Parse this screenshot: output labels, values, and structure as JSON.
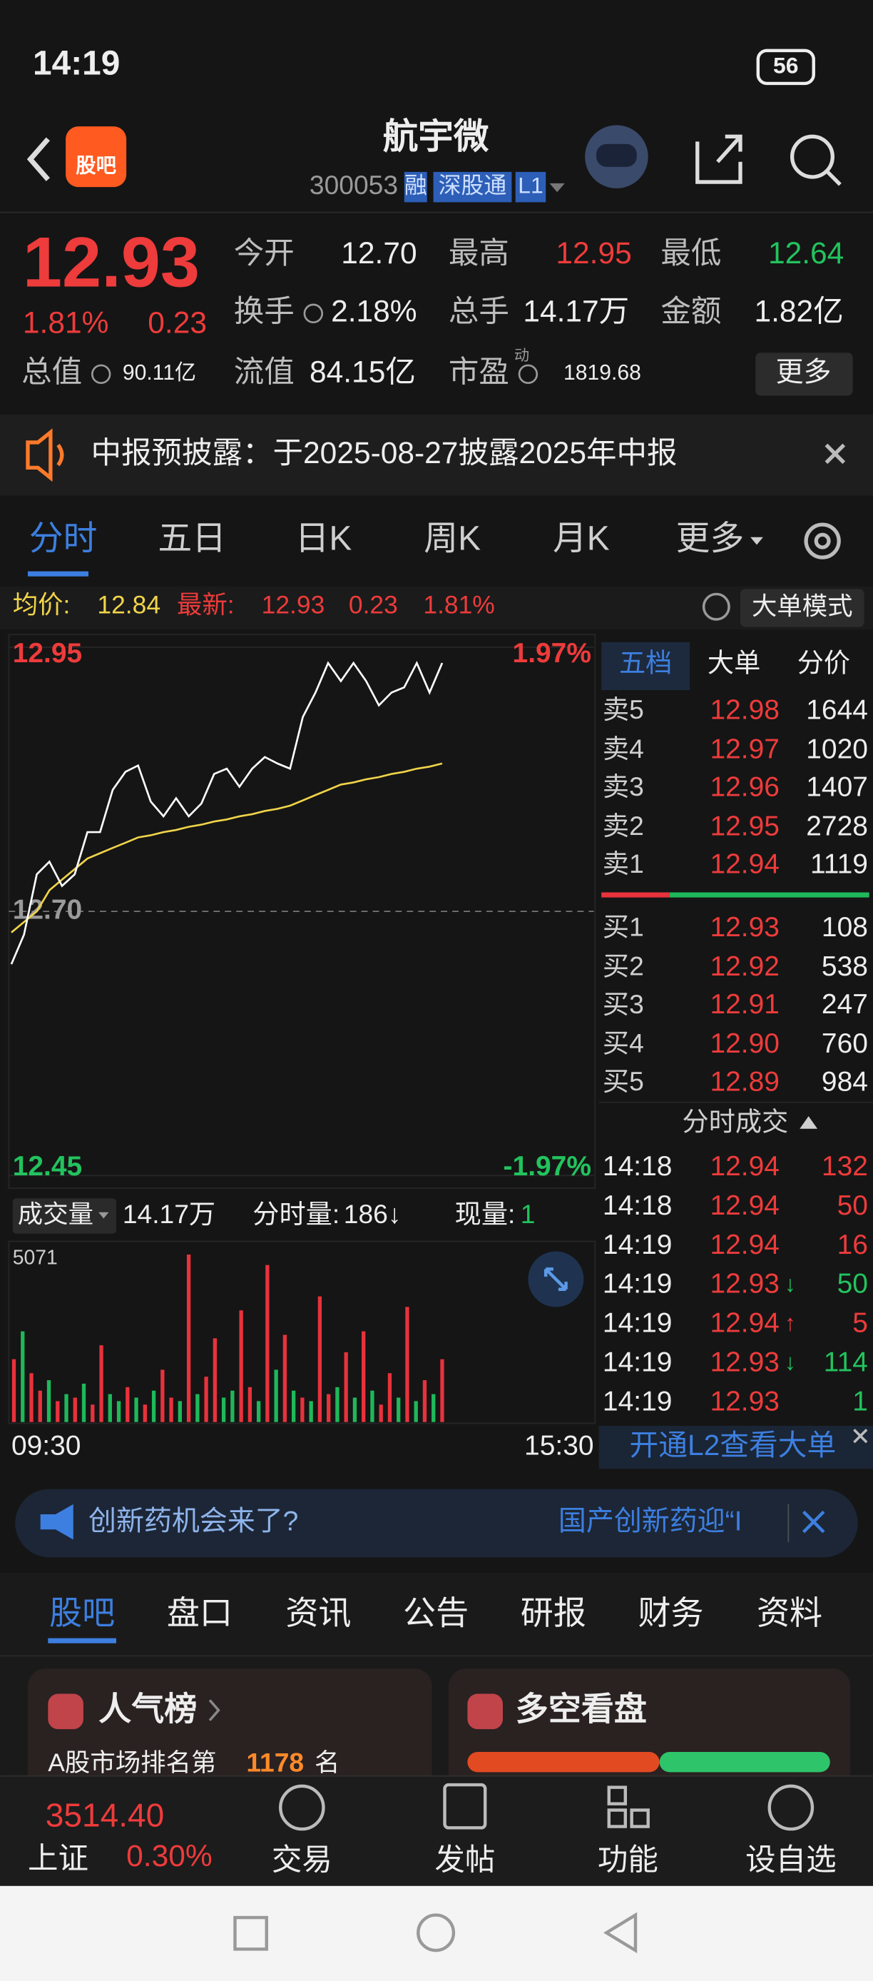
{
  "status_bar": {
    "time": "14:19",
    "battery": "56"
  },
  "header": {
    "logo": "股吧",
    "title": "航宇微",
    "code": "300053",
    "tags": [
      "融",
      "深股通",
      "L1"
    ]
  },
  "quote": {
    "price": "12.93",
    "change_pct": "1.81%",
    "change": "0.23",
    "more": "更多",
    "fields": [
      {
        "label": "今开",
        "value": "12.70",
        "tone": "flat"
      },
      {
        "label": "最高",
        "value": "12.95",
        "tone": "up"
      },
      {
        "label": "最低",
        "value": "12.64",
        "tone": "down"
      },
      {
        "label": "换手",
        "value": "2.18%",
        "tone": "flat"
      },
      {
        "label": "总手",
        "value": "14.17万",
        "tone": "flat"
      },
      {
        "label": "金额",
        "value": "1.82亿",
        "tone": "flat"
      },
      {
        "label": "总值",
        "value": "90.11亿",
        "tone": "flat"
      },
      {
        "label": "流值",
        "value": "84.15亿",
        "tone": "flat"
      },
      {
        "label": "市盈",
        "value": "1819.68",
        "tone": "flat",
        "sup": "动"
      }
    ]
  },
  "notice": "中报预披露：于2025-08-27披露2025年中报",
  "tabs": [
    "分时",
    "五日",
    "日K",
    "周K",
    "月K",
    "更多"
  ],
  "info_line": {
    "avg_label": "均价:",
    "avg": "12.84",
    "latest_label": "最新:",
    "latest": "12.93",
    "change": "0.23",
    "pct": "1.81%",
    "mode": "大单模式"
  },
  "intraday": {
    "ylim": [
      12.45,
      12.95
    ],
    "yticks": [
      12.45,
      {
        "value": 12.7,
        "label": "12.70"
      },
      12.95
    ],
    "pct_top": "1.97%",
    "pct_bottom": "-1.97%",
    "price": [
      12.65,
      12.678,
      12.735,
      12.747,
      12.724,
      12.735,
      12.775,
      12.775,
      12.815,
      12.832,
      12.838,
      12.804,
      12.79,
      12.807,
      12.79,
      12.802,
      12.83,
      12.835,
      12.818,
      12.835,
      12.846,
      12.84,
      12.835,
      12.884,
      12.907,
      12.935,
      12.918,
      12.935,
      12.918,
      12.895,
      12.907,
      12.912,
      12.935,
      12.907,
      12.935
    ],
    "avg": [
      12.68,
      12.69,
      12.7,
      12.72,
      12.73,
      12.74,
      12.75,
      12.755,
      12.76,
      12.765,
      12.77,
      12.772,
      12.775,
      12.777,
      12.78,
      12.782,
      12.785,
      12.787,
      12.79,
      12.792,
      12.795,
      12.797,
      12.8,
      12.805,
      12.81,
      12.815,
      12.82,
      12.822,
      12.825,
      12.827,
      12.83,
      12.832,
      12.835,
      12.837,
      12.84
    ],
    "x_start": "09:30",
    "x_end": "15:30"
  },
  "volume": {
    "label": "成交量",
    "total": "14.17万",
    "period_label": "分时量:",
    "period": "186↓",
    "current_label": "现量:",
    "current": "1",
    "max": 5071,
    "values": [
      1800,
      2600,
      1400,
      900,
      1200,
      600,
      800,
      700,
      1100,
      500,
      2200,
      800,
      600,
      1000,
      700,
      500,
      900,
      1500,
      700,
      600,
      4800,
      800,
      1300,
      2400,
      700,
      900,
      3200,
      1000,
      600,
      4500,
      1500,
      2500,
      900,
      700,
      600,
      3600,
      800,
      1000,
      2000,
      700,
      2600,
      900,
      500,
      1400,
      700,
      3300,
      600,
      1200,
      800,
      1800
    ],
    "up": [
      true,
      false,
      true,
      true,
      false,
      true,
      false,
      true,
      false,
      true,
      true,
      false,
      false,
      true,
      false,
      true,
      false,
      true,
      true,
      false,
      true,
      false,
      true,
      true,
      false,
      false,
      true,
      true,
      false,
      true,
      false,
      true,
      false,
      true,
      false,
      true,
      true,
      false,
      true,
      false,
      true,
      false,
      true,
      true,
      false,
      true,
      false,
      true,
      false,
      true
    ]
  },
  "order_book": {
    "tabs": [
      "五档",
      "大单",
      "分价"
    ],
    "asks": [
      {
        "label": "卖5",
        "price": "12.98",
        "volume": "1644"
      },
      {
        "label": "卖4",
        "price": "12.97",
        "volume": "1020"
      },
      {
        "label": "卖3",
        "price": "12.96",
        "volume": "1407"
      },
      {
        "label": "卖2",
        "price": "12.95",
        "volume": "2728"
      },
      {
        "label": "卖1",
        "price": "12.94",
        "volume": "1119"
      }
    ],
    "bids": [
      {
        "label": "买1",
        "price": "12.93",
        "volume": "108"
      },
      {
        "label": "买2",
        "price": "12.92",
        "volume": "538"
      },
      {
        "label": "买3",
        "price": "12.91",
        "volume": "247"
      },
      {
        "label": "买4",
        "price": "12.90",
        "volume": "760"
      },
      {
        "label": "买5",
        "price": "12.89",
        "volume": "984"
      }
    ]
  },
  "trades": {
    "title": "分时成交",
    "rows": [
      {
        "time": "14:18",
        "price": "12.94",
        "volume": "132",
        "side": "buy"
      },
      {
        "time": "14:18",
        "price": "12.94",
        "volume": "50",
        "side": "buy"
      },
      {
        "time": "14:19",
        "price": "12.94",
        "volume": "16",
        "side": "buy"
      },
      {
        "time": "14:19",
        "price": "12.93",
        "arrow": "↓",
        "volume": "50",
        "side": "sell"
      },
      {
        "time": "14:19",
        "price": "12.94",
        "arrow": "↑",
        "volume": "5",
        "side": "buy"
      },
      {
        "time": "14:19",
        "price": "12.93",
        "arrow": "↓",
        "volume": "114",
        "side": "sell"
      },
      {
        "time": "14:19",
        "price": "12.93",
        "volume": "1",
        "side": "sell"
      }
    ]
  },
  "l2_banner": "开通L2查看大单",
  "ad": {
    "left": "创新药机会来了?",
    "right": "国产创新药迎“I"
  },
  "section_tabs": [
    "股吧",
    "盘口",
    "资讯",
    "公告",
    "研报",
    "财务",
    "资料"
  ],
  "cards": {
    "popularity": {
      "title": "人气榜",
      "text_pre": "A股市场排名第",
      "rank": "1178",
      "text_post": "名"
    },
    "sentiment": {
      "title": "多空看盘"
    }
  },
  "index": {
    "value": "3514.40",
    "name": "上证",
    "pct": "0.30%"
  },
  "nav": [
    "交易",
    "发帖",
    "功能",
    "设自选"
  ]
}
